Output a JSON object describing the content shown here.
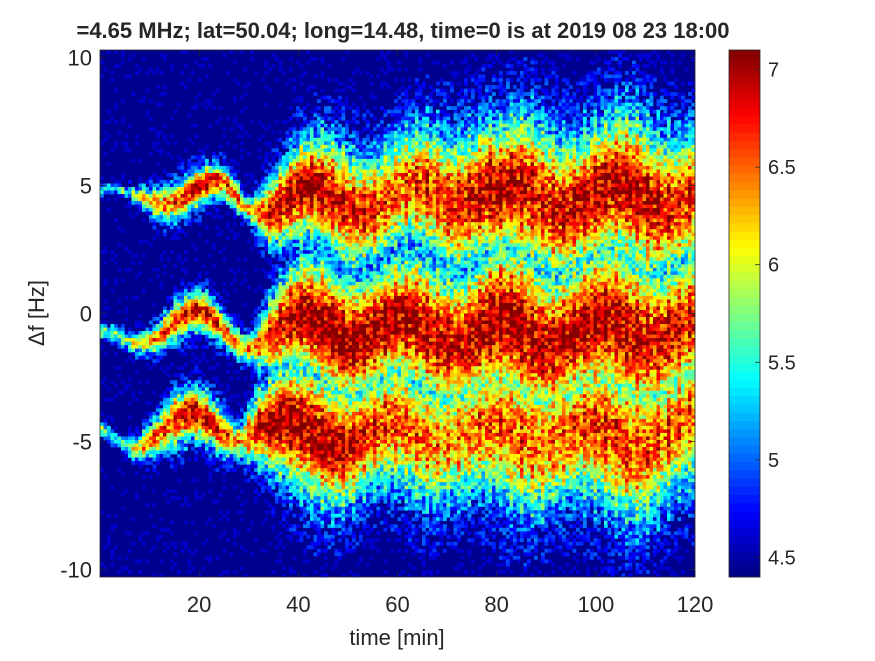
{
  "chart_data": {
    "type": "heatmap",
    "title": "=4.65 MHz;  lat=50.04; long=14.48, time=0 is at 2019 08 23 18:00",
    "xlabel": "time [min]",
    "ylabel": "Δf [Hz]",
    "xlim": [
      0,
      120
    ],
    "ylim": [
      -10.3,
      10.3
    ],
    "xticks": [
      20,
      40,
      60,
      80,
      100,
      120
    ],
    "yticks": [
      -10,
      -5,
      0,
      5,
      10
    ],
    "grid": false,
    "colormap": "jet",
    "colorbar": {
      "range": [
        4.4,
        7.1
      ],
      "ticks": [
        4.5,
        5,
        5.5,
        6,
        6.5,
        7
      ]
    },
    "background_level": 4.45,
    "colors": {
      "low": "#00008f",
      "mid": "#80ff80",
      "high": "#800000"
    },
    "traces": [
      {
        "points": [
          [
            0,
            -4.9
          ],
          [
            5,
            -4.9
          ],
          [
            10,
            -4.6
          ],
          [
            15,
            -4.4
          ],
          [
            20,
            -4.4
          ],
          [
            25,
            -4.5
          ],
          [
            28,
            -4.5
          ],
          [
            32,
            -4.2
          ],
          [
            36,
            -4.6
          ],
          [
            40,
            -4.8
          ],
          [
            50,
            -4.7
          ],
          [
            60,
            -4.8
          ],
          [
            70,
            -4.6
          ],
          [
            80,
            -4.9
          ],
          [
            90,
            -4.6
          ],
          [
            100,
            -4.9
          ],
          [
            110,
            -4.8
          ],
          [
            120,
            -4.5
          ]
        ],
        "peak": [
          5.6,
          5.6,
          6.3,
          6.7,
          6.9,
          6.6,
          6.2,
          6.8,
          7.0,
          7.0,
          6.8,
          6.5,
          6.3,
          6.5,
          6.4,
          6.6,
          6.5,
          6.4
        ],
        "width": [
          0.25,
          0.25,
          0.7,
          1.1,
          1.0,
          0.8,
          0.6,
          1.6,
          2.2,
          2.4,
          2.5,
          2.4,
          2.5,
          2.8,
          2.8,
          2.9,
          3.0,
          2.8
        ]
      },
      {
        "points": [
          [
            0,
            -1.2
          ],
          [
            5,
            -1.0
          ],
          [
            10,
            -0.6
          ],
          [
            15,
            -0.3
          ],
          [
            20,
            -0.4
          ],
          [
            25,
            -0.7
          ],
          [
            30,
            -0.9
          ],
          [
            35,
            -0.7
          ],
          [
            40,
            -0.5
          ],
          [
            50,
            -0.6
          ],
          [
            60,
            -0.7
          ],
          [
            70,
            -0.6
          ],
          [
            75,
            -0.8
          ],
          [
            80,
            -0.7
          ],
          [
            90,
            -0.8
          ],
          [
            100,
            -0.7
          ],
          [
            110,
            -0.6
          ],
          [
            120,
            -0.6
          ]
        ],
        "peak": [
          5.6,
          5.7,
          6.1,
          6.7,
          6.9,
          6.5,
          6.2,
          6.7,
          7.0,
          7.0,
          6.9,
          6.8,
          6.9,
          7.0,
          6.8,
          6.9,
          6.8,
          6.7
        ],
        "width": [
          0.25,
          0.3,
          0.5,
          0.8,
          0.8,
          0.6,
          0.5,
          1.7,
          2.2,
          2.5,
          2.6,
          2.7,
          3.0,
          3.2,
          3.0,
          3.2,
          3.0,
          2.9
        ]
      },
      {
        "points": [
          [
            0,
            4.4
          ],
          [
            5,
            4.4
          ],
          [
            10,
            4.8
          ],
          [
            15,
            4.7
          ],
          [
            20,
            4.6
          ],
          [
            25,
            4.7
          ],
          [
            30,
            4.4
          ],
          [
            35,
            4.4
          ],
          [
            40,
            4.5
          ],
          [
            50,
            4.4
          ],
          [
            60,
            4.5
          ],
          [
            70,
            4.6
          ],
          [
            78,
            5.0
          ],
          [
            80,
            4.5
          ],
          [
            90,
            4.5
          ],
          [
            100,
            4.5
          ],
          [
            110,
            4.6
          ],
          [
            120,
            4.5
          ]
        ],
        "peak": [
          5.4,
          5.4,
          6.1,
          6.5,
          6.9,
          6.6,
          6.2,
          6.8,
          7.0,
          6.7,
          6.5,
          6.6,
          6.9,
          6.9,
          6.7,
          6.9,
          6.8,
          6.6
        ],
        "width": [
          0.2,
          0.2,
          0.5,
          0.8,
          0.8,
          0.6,
          0.4,
          1.5,
          2.0,
          2.2,
          2.3,
          2.5,
          2.9,
          2.9,
          2.8,
          2.9,
          2.9,
          2.8
        ]
      }
    ]
  }
}
